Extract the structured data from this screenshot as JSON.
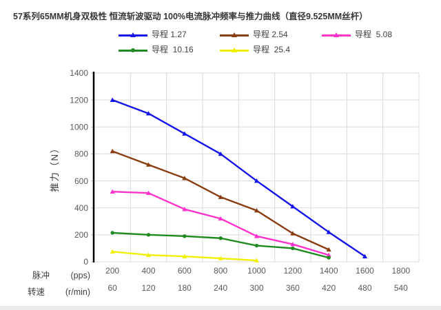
{
  "title": "57系列65MM机身双极性 恒流斩波驱动 100%电流脉冲频率与推力曲线（直径9.525MM丝杆）",
  "colors": {
    "gridline": "#d9d9d9",
    "axis": "#000000",
    "tick_text": "#595959",
    "label_text": "#404040",
    "title_text": "#363636"
  },
  "chart_data": {
    "type": "line",
    "title": "57系列65MM机身双极性 恒流斩波驱动 100%电流脉冲频率与推力曲线（直径9.525MM丝杆）",
    "ylabel": "推力（N）",
    "ylim": [
      0,
      1400
    ],
    "yticks": [
      0,
      200,
      400,
      600,
      800,
      1000,
      1200,
      1400
    ],
    "grid": true,
    "legend_position": "top",
    "x_label_row1": {
      "name": "脉冲",
      "unit": "(pps)",
      "values": [
        200,
        400,
        600,
        800,
        1000,
        1200,
        1400,
        1600,
        1800
      ]
    },
    "x_label_row2": {
      "name": "转速",
      "unit": "(r/min)",
      "values": [
        60,
        120,
        180,
        240,
        300,
        360,
        420,
        480,
        540
      ]
    },
    "series": [
      {
        "name": "导程 1.27",
        "color": "#1414eb",
        "marker": "triangle",
        "x": [
          200,
          400,
          600,
          800,
          1000,
          1200,
          1400,
          1600
        ],
        "values": [
          1200,
          1100,
          950,
          800,
          600,
          410,
          220,
          40
        ]
      },
      {
        "name": "导程 2.54",
        "color": "#8a3d10",
        "marker": "triangle",
        "x": [
          200,
          400,
          600,
          800,
          1000,
          1200,
          1400
        ],
        "values": [
          820,
          720,
          620,
          480,
          380,
          210,
          90
        ]
      },
      {
        "name": "导程  5.08",
        "color": "#ff33cc",
        "marker": "triangle",
        "x": [
          200,
          400,
          600,
          800,
          1000,
          1200,
          1400
        ],
        "values": [
          520,
          510,
          390,
          320,
          190,
          130,
          50
        ]
      },
      {
        "name": "导程  10.16",
        "color": "#1f8a1f",
        "marker": "circle",
        "x": [
          200,
          400,
          600,
          800,
          1000,
          1200,
          1400
        ],
        "values": [
          215,
          200,
          190,
          175,
          120,
          100,
          30
        ]
      },
      {
        "name": "导程  25.4",
        "color": "#f0f000",
        "marker": "triangle",
        "x": [
          200,
          400,
          600,
          800,
          1000
        ],
        "values": [
          75,
          50,
          40,
          25,
          10
        ]
      }
    ]
  }
}
